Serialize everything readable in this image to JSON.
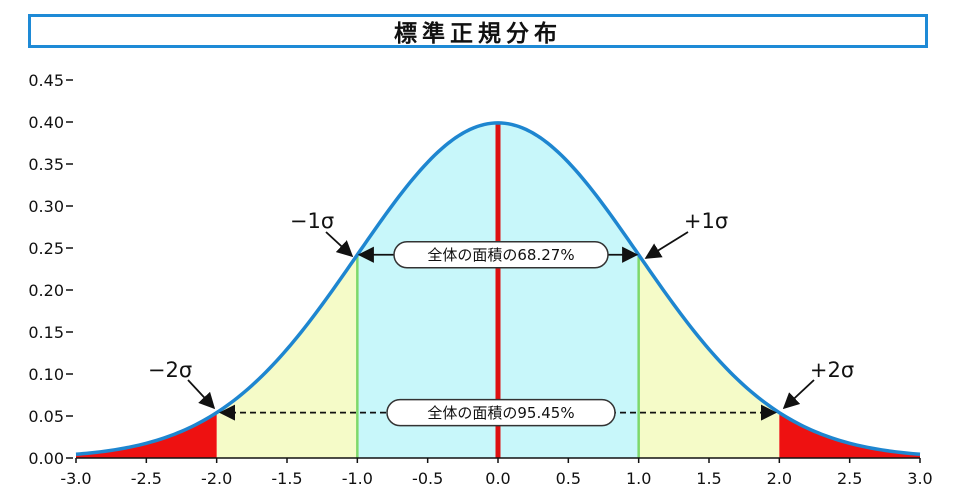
{
  "chart_data": {
    "type": "area",
    "title": "標準正規分布",
    "xlim": [
      -3.0,
      3.0
    ],
    "ylim": [
      0.0,
      0.45
    ],
    "x_ticks": [
      "-3.0",
      "-2.5",
      "-2.0",
      "-1.5",
      "-1.0",
      "-0.5",
      "0.0",
      "0.5",
      "1.0",
      "1.5",
      "2.0",
      "2.5",
      "3.0"
    ],
    "y_ticks": [
      "0.00",
      "0.05",
      "0.10",
      "0.15",
      "0.20",
      "0.25",
      "0.30",
      "0.35",
      "0.40",
      "0.45"
    ],
    "series": [
      {
        "x": [
          -3.0,
          -2.5,
          -2.0,
          -1.5,
          -1.0,
          -0.5,
          0.0,
          0.5,
          1.0,
          1.5,
          2.0,
          2.5,
          3.0
        ],
        "y": [
          0.0044,
          0.0175,
          0.054,
          0.1295,
          0.242,
          0.3521,
          0.3989,
          0.3521,
          0.242,
          0.1295,
          0.054,
          0.0175,
          0.0044
        ]
      }
    ],
    "regions": [
      {
        "from": -1.0,
        "to": 1.0,
        "color": "#c8f7fa"
      },
      {
        "from": -2.0,
        "to": -1.0,
        "color": "#f5fbc8"
      },
      {
        "from": 1.0,
        "to": 2.0,
        "color": "#f5fbc8"
      },
      {
        "from": -3.0,
        "to": -2.0,
        "color": "#ee1111"
      },
      {
        "from": 2.0,
        "to": 3.0,
        "color": "#ee1111"
      }
    ],
    "annotations": {
      "minus1": "−1σ",
      "plus1": "+1σ",
      "minus2": "−2σ",
      "plus2": "+2σ",
      "area1": "全体の面積の68.27%",
      "area2": "全体の面積の95.45%"
    },
    "colors": {
      "curve": "#1e86d0",
      "center_line": "#dd1111",
      "one_sigma_line": "#7ed86b",
      "tail": "#ee1111"
    },
    "grid": false,
    "legend": "none"
  }
}
